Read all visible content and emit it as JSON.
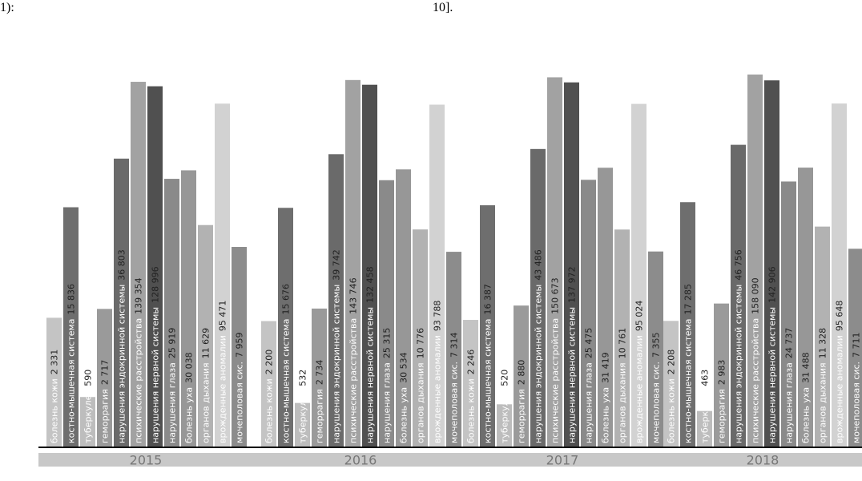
{
  "fragments": [
    "1):",
    "10]."
  ],
  "chart_data": [
    {
      "type": "bar",
      "title": "2015",
      "log_scale": true,
      "ylim": [
        250,
        250000
      ],
      "categories": [
        "болезнь кожи",
        "костно-мышечная система",
        "туберкулез",
        "геморрагия",
        "нарушения эндокринной системы",
        "психические расстройства",
        "нарушения нервной системы",
        "нарушения глаза",
        "болезнь уха",
        "органов дыхания",
        "врожденные аномалии",
        "мочеполовая сис."
      ],
      "values": [
        2331,
        15836,
        590,
        2717,
        36803,
        139354,
        128996,
        25919,
        30038,
        11629,
        95471,
        7959
      ],
      "value_labels": [
        "2 331",
        "15 836",
        "590",
        "2 717",
        "36 803",
        "139 354",
        "128 996",
        "25 919",
        "30 038",
        "11 629",
        "95 471",
        "7 959"
      ],
      "colors": [
        "#c4c4c4",
        "#6e6e6e",
        "#bdbdbd",
        "#9a9a9a",
        "#6a6a6a",
        "#a2a2a2",
        "#505050",
        "#8a8a8a",
        "#979797",
        "#b2b2b2",
        "#d2d2d2",
        "#8c8c8c"
      ]
    },
    {
      "type": "bar",
      "title": "2016",
      "log_scale": true,
      "ylim": [
        250,
        250000
      ],
      "categories": [
        "болезнь кожи",
        "костно-мышечная система",
        "туберкулез",
        "геморрагия",
        "нарушения эндокринной системы",
        "психические расстройства",
        "нарушения нервной системы",
        "нарушения глаза",
        "болезнь уха",
        "органов дыхания",
        "врожденные аномалии",
        "мочеполовая сис."
      ],
      "values": [
        2200,
        15676,
        532,
        2734,
        39742,
        143746,
        132458,
        25315,
        30534,
        10776,
        93788,
        7314
      ],
      "value_labels": [
        "2 200",
        "15 676",
        "532",
        "2 734",
        "39 742",
        "143 746",
        "132 458",
        "25 315",
        "30 534",
        "10 776",
        "93 788",
        "7 314"
      ],
      "colors": [
        "#c4c4c4",
        "#6e6e6e",
        "#bdbdbd",
        "#9a9a9a",
        "#6a6a6a",
        "#a2a2a2",
        "#505050",
        "#8a8a8a",
        "#979797",
        "#b2b2b2",
        "#d2d2d2",
        "#8c8c8c"
      ]
    },
    {
      "type": "bar",
      "title": "2017",
      "log_scale": true,
      "ylim": [
        250,
        250000
      ],
      "categories": [
        "болезнь кожи",
        "костно-мышечная система",
        "туберкулез",
        "геморрагия",
        "нарушения эндокринной системы",
        "психические расстройства",
        "нарушения нервной системы",
        "нарушения глаза",
        "болезнь уха",
        "органов дыхания",
        "врожденные аномалии",
        "мочеполовая сис."
      ],
      "values": [
        2246,
        16387,
        520,
        2880,
        43486,
        150673,
        137972,
        25475,
        31419,
        10761,
        95024,
        7355
      ],
      "value_labels": [
        "2 246",
        "16 387",
        "520",
        "2 880",
        "43 486",
        "150 673",
        "137 972",
        "25 475",
        "31 419",
        "10 761",
        "95 024",
        "7 355"
      ],
      "colors": [
        "#c4c4c4",
        "#6e6e6e",
        "#bdbdbd",
        "#9a9a9a",
        "#6a6a6a",
        "#a2a2a2",
        "#505050",
        "#8a8a8a",
        "#979797",
        "#b2b2b2",
        "#d2d2d2",
        "#8c8c8c"
      ]
    },
    {
      "type": "bar",
      "title": "2018",
      "log_scale": true,
      "ylim": [
        250,
        250000
      ],
      "categories": [
        "болезнь кожи",
        "костно-мышечная система",
        "туберкулез",
        "геморрагия",
        "нарушения эндокринной системы",
        "психические расстройства",
        "нарушения нервной системы",
        "нарушения глаза",
        "болезнь уха",
        "органов дыхания",
        "врожденные аномалии",
        "мочеполовая сис."
      ],
      "values": [
        2208,
        17285,
        463,
        2983,
        46756,
        158090,
        142906,
        24737,
        31488,
        11328,
        95648,
        7711
      ],
      "value_labels": [
        "2 208",
        "17 285",
        "463",
        "2 983",
        "46 756",
        "158 090",
        "142 906",
        "24 737",
        "31 488",
        "11 328",
        "95 648",
        "7 711"
      ],
      "colors": [
        "#c4c4c4",
        "#6e6e6e",
        "#bdbdbd",
        "#9a9a9a",
        "#6a6a6a",
        "#a2a2a2",
        "#505050",
        "#8a8a8a",
        "#979797",
        "#b2b2b2",
        "#d2d2d2",
        "#8c8c8c"
      ]
    }
  ]
}
